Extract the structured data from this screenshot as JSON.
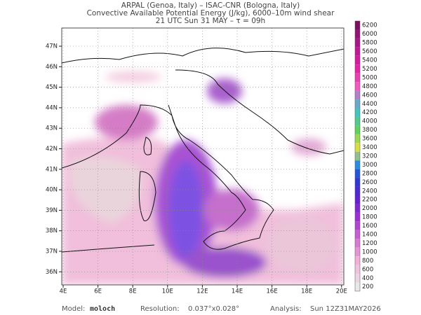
{
  "header": {
    "lines": [
      "ARPAL (Genoa, Italy)  –  ISAC-CNR (Bologna, Italy)",
      "Convective Available Potential Energy (J/kg), 6000–10m wind shear",
      "21 UTC Sun 31 MAY  –  τ = 09h"
    ]
  },
  "map": {
    "lat_labels": [
      "47N",
      "46N",
      "45N",
      "44N",
      "43N",
      "42N",
      "41N",
      "40N",
      "39N",
      "38N",
      "37N",
      "36N"
    ],
    "lon_labels": [
      "4E",
      "6E",
      "8E",
      "10E",
      "12E",
      "14E",
      "16E",
      "18E",
      "20E"
    ]
  },
  "colorbar": {
    "labels": [
      6200,
      6000,
      5800,
      5600,
      5400,
      5200,
      5000,
      4800,
      4600,
      4400,
      4200,
      4000,
      3800,
      3600,
      3400,
      3200,
      3000,
      2800,
      2600,
      2400,
      2200,
      2000,
      1800,
      1600,
      1400,
      1200,
      1000,
      800,
      600,
      400,
      200
    ]
  },
  "footer": {
    "model_label": "Model:",
    "model": "moloch",
    "resolution_label": "Resolution:",
    "resolution": "0.037°x0.028°",
    "analysis_label": "Analysis:",
    "analysis": "Sun 12Z31MAY2026"
  }
}
